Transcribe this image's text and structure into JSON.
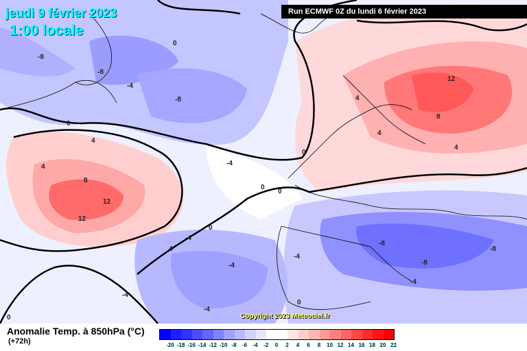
{
  "header": {
    "date": "jeudi 9 février 2023",
    "time": "1:00 locale",
    "run": "Run ECMWF 0Z du lundi 6 février 2023"
  },
  "copyright": "Copyright 2023 Meteociel.fr",
  "legend": {
    "title": "Anomalie Temp. à 850hPa (°C)",
    "subtitle": "(+72h)",
    "ticks": [
      "-20",
      "-18",
      "-16",
      "-14",
      "-12",
      "-10",
      "-8",
      "-6",
      "-4",
      "-2",
      "0",
      "2",
      "4",
      "6",
      "8",
      "10",
      "12",
      "14",
      "16",
      "18",
      "20",
      "22"
    ],
    "colors": [
      "#0000ff",
      "#1e1eff",
      "#3232ff",
      "#4b4bff",
      "#6464ff",
      "#8282ff",
      "#a0a0ff",
      "#b9b9ff",
      "#d2d2ff",
      "#e6e6ff",
      "#ffffff",
      "#ffffff",
      "#ffe6e6",
      "#ffcccc",
      "#ffb4b4",
      "#ff9a9a",
      "#ff8080",
      "#ff6464",
      "#ff4848",
      "#ff2c2c",
      "#ff1414",
      "#ff0000"
    ]
  },
  "contour_labels": [
    "-8",
    "0",
    "-8",
    "-4",
    "-8",
    "0",
    "4",
    "4",
    "8",
    "12",
    "12",
    "-4",
    "0",
    "0",
    "0",
    "4",
    "12",
    "8",
    "4",
    "4",
    "-8",
    "-8",
    "-8",
    "-4",
    "-4",
    "-4",
    "0",
    "-4",
    "-4",
    "0",
    "4",
    "-4",
    "0"
  ]
}
